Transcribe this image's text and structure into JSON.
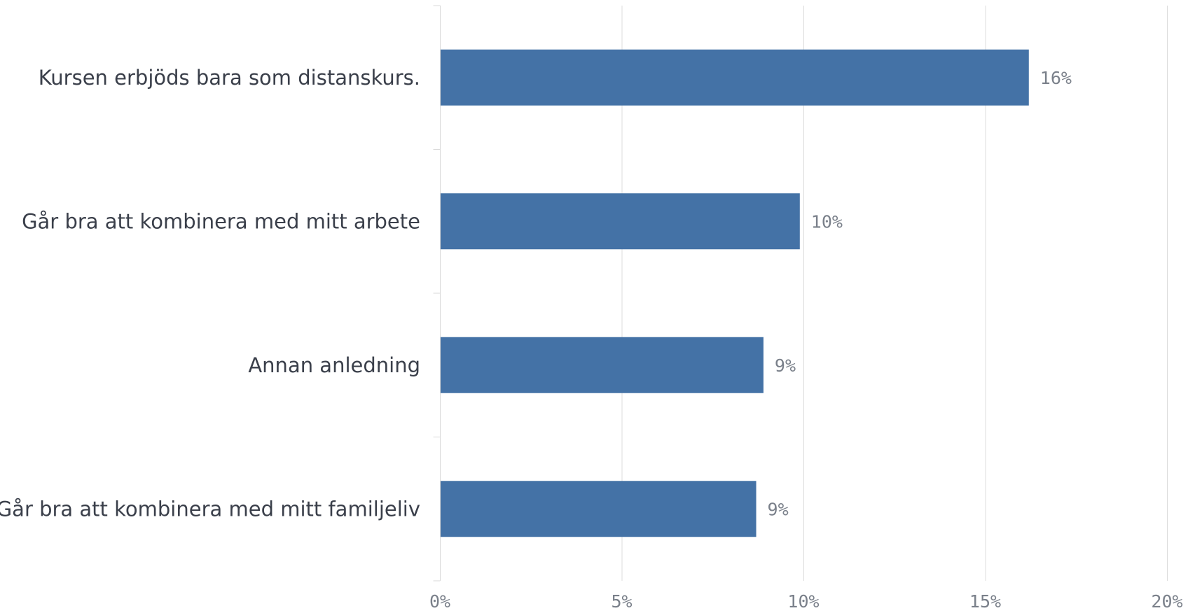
{
  "chart_data": {
    "type": "bar",
    "orientation": "horizontal",
    "categories": [
      "Kursen erbjöds bara som distanskurs.",
      "Går bra att kombinera med mitt arbete",
      "Annan anledning",
      "Går bra att kombinera med mitt familjeliv"
    ],
    "values": [
      16.2,
      9.9,
      8.9,
      8.7
    ],
    "value_labels": [
      "16%",
      "10%",
      "9%",
      "9%"
    ],
    "x_ticks": [
      0,
      5,
      10,
      15,
      20
    ],
    "x_tick_labels": [
      "0%",
      "5%",
      "10%",
      "15%",
      "20%"
    ],
    "xlim": [
      0,
      20
    ],
    "grid": true,
    "bar_color": "#4472a6"
  }
}
